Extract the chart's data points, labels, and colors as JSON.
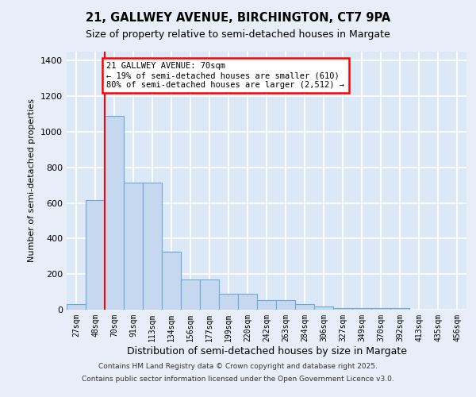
{
  "title_line1": "21, GALLWEY AVENUE, BIRCHINGTON, CT7 9PA",
  "title_line2": "Size of property relative to semi-detached houses in Margate",
  "xlabel": "Distribution of semi-detached houses by size in Margate",
  "ylabel": "Number of semi-detached properties",
  "categories": [
    "27sqm",
    "48sqm",
    "70sqm",
    "91sqm",
    "113sqm",
    "134sqm",
    "156sqm",
    "177sqm",
    "199sqm",
    "220sqm",
    "242sqm",
    "263sqm",
    "284sqm",
    "306sqm",
    "327sqm",
    "349sqm",
    "370sqm",
    "392sqm",
    "413sqm",
    "435sqm",
    "456sqm"
  ],
  "values": [
    30,
    615,
    1090,
    715,
    715,
    325,
    170,
    170,
    90,
    90,
    55,
    55,
    30,
    18,
    10,
    10,
    10,
    10,
    0,
    0,
    0
  ],
  "bar_color": "#c5d8f0",
  "bar_edge_color": "#6aaad4",
  "red_line_index": 2,
  "annotation_title": "21 GALLWEY AVENUE: 70sqm",
  "annotation_line1": "← 19% of semi-detached houses are smaller (610)",
  "annotation_line2": "80% of semi-detached houses are larger (2,512) →",
  "ylim": [
    0,
    1450
  ],
  "yticks": [
    0,
    200,
    400,
    600,
    800,
    1000,
    1200,
    1400
  ],
  "footer_line1": "Contains HM Land Registry data © Crown copyright and database right 2025.",
  "footer_line2": "Contains public sector information licensed under the Open Government Licence v3.0.",
  "bg_color": "#e8eef8",
  "plot_bg_color": "#dce8f5",
  "grid_color": "#ffffff"
}
